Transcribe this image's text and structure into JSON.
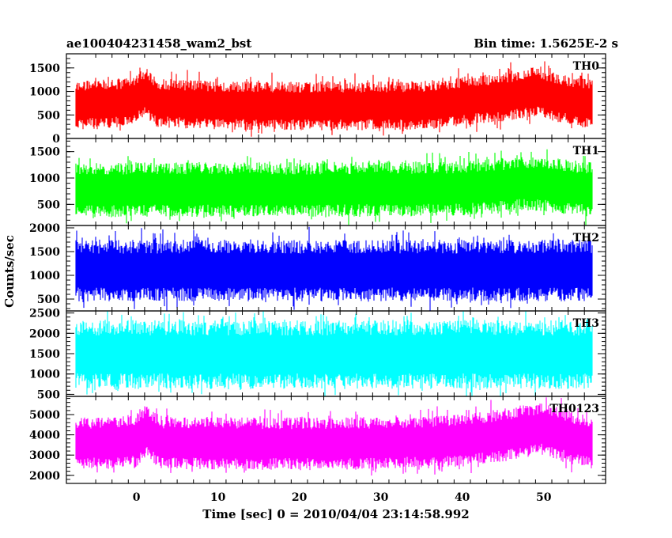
{
  "header": {
    "title": "ae100404231458_wam2_bst",
    "bin_time": "Bin time: 1.5625E-2 s"
  },
  "axes": {
    "xlabel": "Time [sec] 0 = 2010/04/04 23:14:58.992",
    "ylabel": "Counts/sec"
  },
  "chart_data": {
    "type": "line",
    "x_range": [
      -8.6,
      57.6
    ],
    "x_ticks": [
      0,
      10,
      20,
      30,
      40,
      50
    ],
    "x_data_range": [
      -7.5,
      56.0
    ],
    "bin_time_sec": 0.015625,
    "panels": [
      {
        "name": "TH0",
        "color": "#ff0000",
        "ylim": [
          0,
          1800
        ],
        "yticks": [
          0,
          500,
          1000,
          1500
        ],
        "mean": 720,
        "noise_halfwidth": 520,
        "trend": [
          [
            -7.5,
            700
          ],
          [
            -2,
            760
          ],
          [
            0,
            850
          ],
          [
            1.3,
            1000
          ],
          [
            2.5,
            760
          ],
          [
            10,
            700
          ],
          [
            25,
            690
          ],
          [
            35,
            700
          ],
          [
            45,
            880
          ],
          [
            49,
            1000
          ],
          [
            52,
            850
          ],
          [
            56,
            720
          ]
        ]
      },
      {
        "name": "TH1",
        "color": "#00ff00",
        "ylim": [
          100,
          1750
        ],
        "yticks": [
          500,
          1000,
          1500
        ],
        "mean": 780,
        "noise_halfwidth": 520,
        "trend": [
          [
            -7.5,
            760
          ],
          [
            0,
            780
          ],
          [
            20,
            780
          ],
          [
            40,
            800
          ],
          [
            48,
            900
          ],
          [
            50,
            880
          ],
          [
            56,
            780
          ]
        ]
      },
      {
        "name": "TH2",
        "color": "#0000ff",
        "ylim": [
          250,
          2050
        ],
        "yticks": [
          500,
          1000,
          1500,
          2000
        ],
        "mean": 1100,
        "noise_halfwidth": 650,
        "trend": [
          [
            -7.5,
            1100
          ],
          [
            56,
            1100
          ]
        ]
      },
      {
        "name": "TH3",
        "color": "#00ffff",
        "ylim": [
          450,
          2550
        ],
        "yticks": [
          500,
          1000,
          1500,
          2000,
          2500
        ],
        "mean": 1480,
        "noise_halfwidth": 850,
        "trend": [
          [
            -7.5,
            1480
          ],
          [
            56,
            1480
          ]
        ]
      },
      {
        "name": "TH0123",
        "color": "#ff00ff",
        "ylim": [
          1600,
          5900
        ],
        "yticks": [
          2000,
          3000,
          4000,
          5000
        ],
        "mean": 3600,
        "noise_halfwidth": 1300,
        "trend": [
          [
            -7.5,
            3550
          ],
          [
            0,
            3700
          ],
          [
            1.3,
            4200
          ],
          [
            3,
            3600
          ],
          [
            25,
            3550
          ],
          [
            40,
            3700
          ],
          [
            47,
            4100
          ],
          [
            50,
            4300
          ],
          [
            53,
            3900
          ],
          [
            56,
            3600
          ]
        ]
      }
    ]
  }
}
